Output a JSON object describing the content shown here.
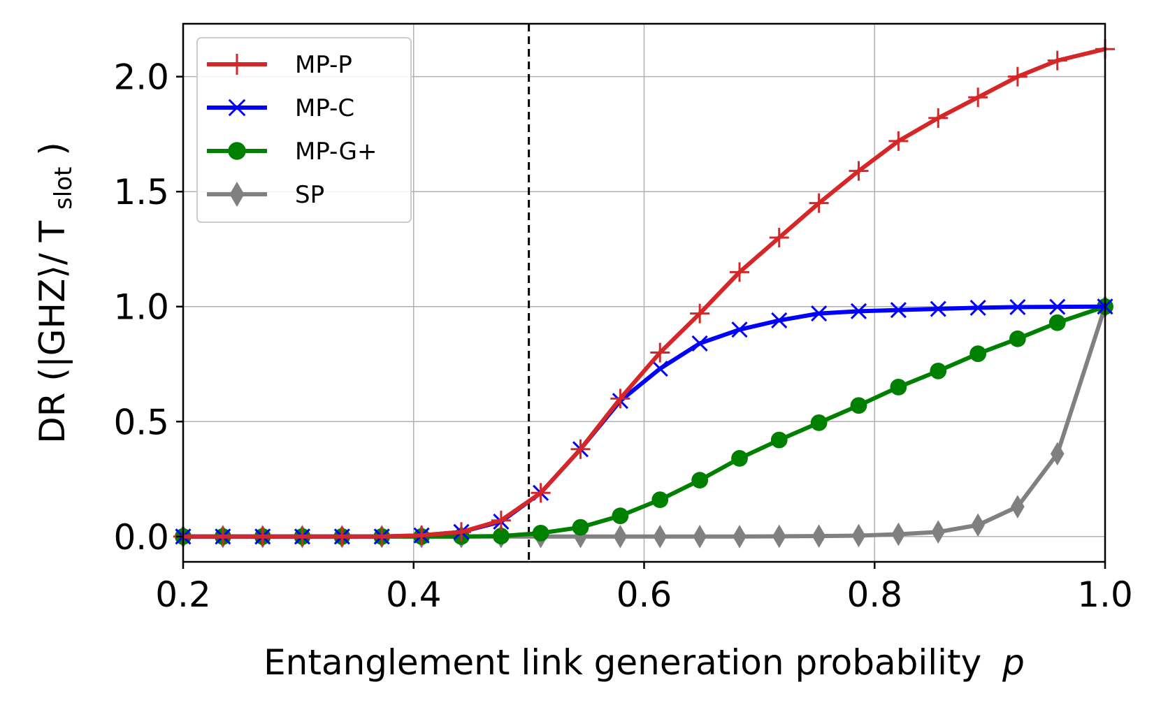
{
  "chart_data": {
    "type": "line",
    "xlabel": "Entanglement link generation probability",
    "xlabel_var": "p",
    "ylabel_main": "DR (|GHZ⟩/ T",
    "ylabel_sub": "slot",
    "ylabel_close": ")",
    "xlim": [
      0.2,
      1.0
    ],
    "ylim": [
      -0.11,
      2.23
    ],
    "xticks": [
      0.2,
      0.4,
      0.6,
      0.8,
      1.0
    ],
    "xtick_labels": [
      "0.2",
      "0.4",
      "0.6",
      "0.8",
      "1.0"
    ],
    "yticks": [
      0.0,
      0.5,
      1.0,
      1.5,
      2.0
    ],
    "ytick_labels": [
      "0.0",
      "0.5",
      "1.0",
      "1.5",
      "2.0"
    ],
    "grid": true,
    "legend_position": "top-left",
    "threshold_line": 0.5,
    "x": [
      0.2,
      0.2345,
      0.269,
      0.3034,
      0.3379,
      0.3724,
      0.4069,
      0.4414,
      0.4759,
      0.5103,
      0.5448,
      0.5793,
      0.6138,
      0.6483,
      0.6828,
      0.7172,
      0.7517,
      0.7862,
      0.8207,
      0.8552,
      0.8897,
      0.9241,
      0.9586,
      1.0
    ],
    "series": [
      {
        "name": "MP-P",
        "color": "#d62728",
        "marker": "plus",
        "values": [
          0,
          0,
          0,
          0,
          0,
          0,
          0.005,
          0.02,
          0.07,
          0.19,
          0.38,
          0.6,
          0.8,
          0.97,
          1.15,
          1.3,
          1.45,
          1.59,
          1.72,
          1.82,
          1.91,
          2.0,
          2.07,
          2.12
        ]
      },
      {
        "name": "MP-C",
        "color": "#0000ff",
        "marker": "x",
        "values": [
          0,
          0,
          0,
          0,
          0,
          0,
          0.005,
          0.02,
          0.065,
          0.19,
          0.38,
          0.59,
          0.73,
          0.84,
          0.9,
          0.94,
          0.97,
          0.98,
          0.985,
          0.99,
          0.995,
          0.998,
          0.999,
          1.0
        ]
      },
      {
        "name": "MP-G+",
        "color": "#008000",
        "marker": "circle",
        "values": [
          0,
          0,
          0,
          0,
          0,
          0,
          0,
          0,
          0.002,
          0.015,
          0.04,
          0.09,
          0.16,
          0.245,
          0.34,
          0.42,
          0.495,
          0.57,
          0.65,
          0.72,
          0.795,
          0.86,
          0.93,
          1.0
        ]
      },
      {
        "name": "SP",
        "color": "#808080",
        "marker": "diamond",
        "values": [
          0,
          0,
          0,
          0,
          0,
          0,
          0,
          0,
          0,
          0,
          0,
          0,
          0,
          0,
          0,
          0.001,
          0.002,
          0.004,
          0.01,
          0.02,
          0.05,
          0.13,
          0.36,
          1.0
        ]
      }
    ]
  }
}
